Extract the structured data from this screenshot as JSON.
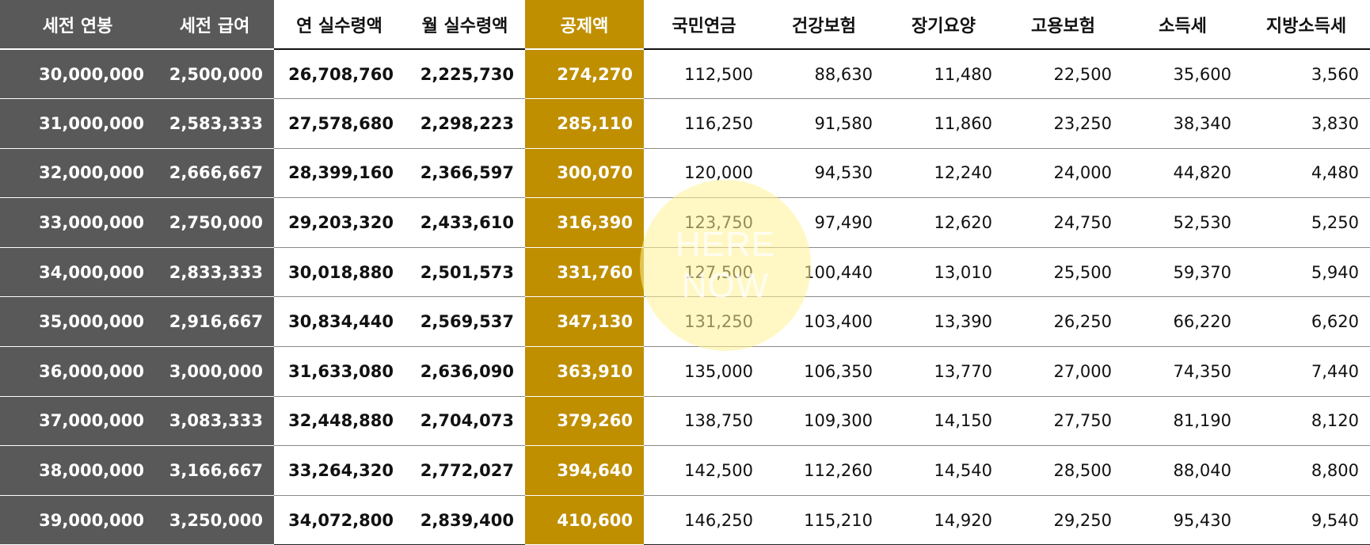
{
  "table": {
    "headers": [
      "세전 연봉",
      "세전 급여",
      "연 실수령액",
      "월 실수령액",
      "공제액",
      "국민연금",
      "건강보험",
      "장기요양",
      "고용보험",
      "소득세",
      "지방소득세"
    ],
    "rows": [
      [
        "30,000,000",
        "2,500,000",
        "26,708,760",
        "2,225,730",
        "274,270",
        "112,500",
        "88,630",
        "11,480",
        "22,500",
        "35,600",
        "3,560"
      ],
      [
        "31,000,000",
        "2,583,333",
        "27,578,680",
        "2,298,223",
        "285,110",
        "116,250",
        "91,580",
        "11,860",
        "23,250",
        "38,340",
        "3,830"
      ],
      [
        "32,000,000",
        "2,666,667",
        "28,399,160",
        "2,366,597",
        "300,070",
        "120,000",
        "94,530",
        "12,240",
        "24,000",
        "44,820",
        "4,480"
      ],
      [
        "33,000,000",
        "2,750,000",
        "29,203,320",
        "2,433,610",
        "316,390",
        "123,750",
        "97,490",
        "12,620",
        "24,750",
        "52,530",
        "5,250"
      ],
      [
        "34,000,000",
        "2,833,333",
        "30,018,880",
        "2,501,573",
        "331,760",
        "127,500",
        "100,440",
        "13,010",
        "25,500",
        "59,370",
        "5,940"
      ],
      [
        "35,000,000",
        "2,916,667",
        "30,834,440",
        "2,569,537",
        "347,130",
        "131,250",
        "103,400",
        "13,390",
        "26,250",
        "66,220",
        "6,620"
      ],
      [
        "36,000,000",
        "3,000,000",
        "31,633,080",
        "2,636,090",
        "363,910",
        "135,000",
        "106,350",
        "13,770",
        "27,000",
        "74,350",
        "7,440"
      ],
      [
        "37,000,000",
        "3,083,333",
        "32,448,880",
        "2,704,073",
        "379,260",
        "138,750",
        "109,300",
        "14,150",
        "27,750",
        "81,190",
        "8,120"
      ],
      [
        "38,000,000",
        "3,166,667",
        "33,264,320",
        "2,772,027",
        "394,640",
        "142,500",
        "112,260",
        "14,540",
        "28,500",
        "88,040",
        "8,800"
      ],
      [
        "39,000,000",
        "3,250,000",
        "34,072,800",
        "2,839,400",
        "410,600",
        "146,250",
        "115,210",
        "14,920",
        "29,250",
        "95,430",
        "9,540"
      ]
    ]
  },
  "watermark": {
    "line1": "HERE",
    "line2": "NOW"
  },
  "colors": {
    "dark_column_bg": "#595959",
    "gold_column_bg": "#bf8f00",
    "watermark_circle": "#fff396"
  }
}
